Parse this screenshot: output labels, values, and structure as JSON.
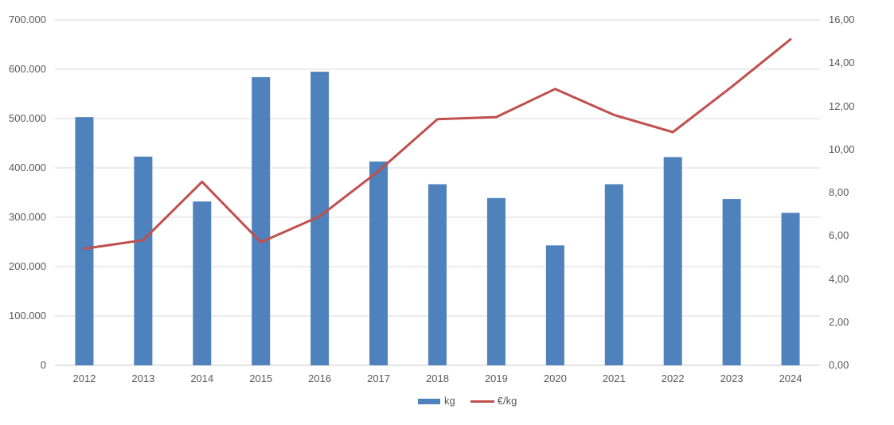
{
  "colors": {
    "bar": "#4F81BD",
    "line": "#C0504D",
    "grid": "#D9D9D9",
    "axis_line": "#C9C9C9",
    "axis_text": "#595959",
    "background": "#FFFFFF"
  },
  "chart_data": {
    "type": "combo-bar-line",
    "title": "",
    "categories": [
      "2012",
      "2013",
      "2014",
      "2015",
      "2016",
      "2017",
      "2018",
      "2019",
      "2020",
      "2021",
      "2022",
      "2023",
      "2024"
    ],
    "series": [
      {
        "name": "kg",
        "type": "bar",
        "axis": "left",
        "color": "#4F81BD",
        "values": [
          503000,
          423000,
          332000,
          584000,
          595000,
          413000,
          367000,
          339000,
          243000,
          367000,
          422000,
          337000,
          309000
        ]
      },
      {
        "name": "€/kg",
        "type": "line",
        "axis": "right",
        "color": "#C0504D",
        "values": [
          5.4,
          5.8,
          8.5,
          5.7,
          6.9,
          9.0,
          11.4,
          11.5,
          12.8,
          11.6,
          10.8,
          12.9,
          15.1
        ]
      }
    ],
    "left_axis": {
      "min": 0,
      "max": 700000,
      "step": 100000,
      "tick_labels": [
        "0",
        "100.000",
        "200.000",
        "300.000",
        "400.000",
        "500.000",
        "600.000",
        "700.000"
      ]
    },
    "right_axis": {
      "min": 0,
      "max": 16,
      "step": 2,
      "tick_labels": [
        "0,00",
        "2,00",
        "4,00",
        "6,00",
        "8,00",
        "10,00",
        "12,00",
        "14,00",
        "16,00"
      ]
    },
    "grid": true,
    "legend_position": "bottom-center"
  }
}
